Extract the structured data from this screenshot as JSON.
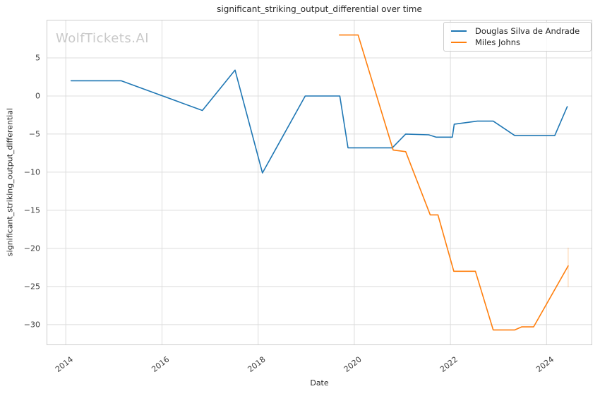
{
  "watermark": "WolfTickets.AI",
  "colors": {
    "background": "#ffffff",
    "grid": "#dcdcdc",
    "spine": "#cccccc",
    "title_text": "#262626",
    "tick_text": "#3b3b3b",
    "watermark_text": "#c9c9c9",
    "series_blue": "#1f77b4",
    "series_orange": "#ff7f0e"
  },
  "chart_data": {
    "type": "line",
    "title": "significant_striking_output_differential over time",
    "xlabel": "Date",
    "ylabel": "significant_striking_output_differential",
    "xlim": [
      2013.6,
      2024.95
    ],
    "ylim": [
      -32.7,
      10.0
    ],
    "grid": true,
    "legend_position": "upper-right",
    "x_ticks": {
      "positions": [
        2014,
        2016,
        2018,
        2020,
        2022,
        2024
      ],
      "labels": [
        "2014",
        "2016",
        "2018",
        "2020",
        "2022",
        "2024"
      ]
    },
    "y_ticks": {
      "positions": [
        5,
        0,
        -5,
        -10,
        -15,
        -20,
        -25,
        -30
      ],
      "labels": [
        "5",
        "0",
        "−5",
        "−10",
        "−15",
        "−20",
        "−25",
        "−30"
      ]
    },
    "series": [
      {
        "name": "Douglas Silva de Andrade",
        "color": "#1f77b4",
        "points": [
          [
            2014.11,
            2.0
          ],
          [
            2015.15,
            2.0
          ],
          [
            2016.84,
            -1.9
          ],
          [
            2017.52,
            3.4
          ],
          [
            2018.09,
            -10.1
          ],
          [
            2018.98,
            0.0
          ],
          [
            2019.7,
            0.0
          ],
          [
            2019.87,
            -6.8
          ],
          [
            2020.79,
            -6.8
          ],
          [
            2021.07,
            -5.0
          ],
          [
            2021.55,
            -5.1
          ],
          [
            2021.7,
            -5.4
          ],
          [
            2022.04,
            -5.4
          ],
          [
            2022.08,
            -3.7
          ],
          [
            2022.56,
            -3.3
          ],
          [
            2022.89,
            -3.3
          ],
          [
            2023.34,
            -5.2
          ],
          [
            2024.17,
            -5.2
          ],
          [
            2024.43,
            -1.4
          ]
        ]
      },
      {
        "name": "Miles Johns",
        "color": "#ff7f0e",
        "points": [
          [
            2019.69,
            8.0
          ],
          [
            2020.08,
            8.0
          ],
          [
            2020.81,
            -7.1
          ],
          [
            2021.07,
            -7.3
          ],
          [
            2021.58,
            -15.6
          ],
          [
            2021.74,
            -15.6
          ],
          [
            2022.07,
            -23.0
          ],
          [
            2022.52,
            -23.0
          ],
          [
            2022.89,
            -30.7
          ],
          [
            2023.34,
            -30.7
          ],
          [
            2023.48,
            -30.3
          ],
          [
            2023.73,
            -30.3
          ],
          [
            2024.45,
            -22.3
          ]
        ]
      }
    ],
    "error_bar": {
      "series": "Miles Johns",
      "color": "#ff7f0e",
      "x": 2024.45,
      "y_from": -19.9,
      "y_to": -25.1,
      "opacity": 0.3
    }
  }
}
